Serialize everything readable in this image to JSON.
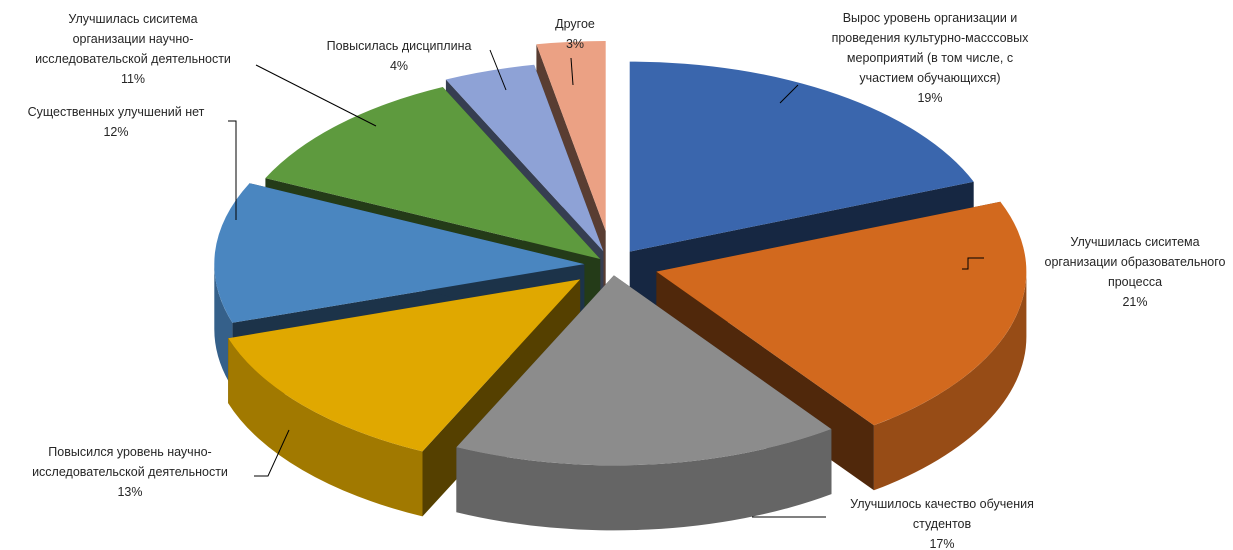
{
  "chart_data": {
    "type": "pie",
    "style": "3d-exploded",
    "title": "",
    "slices": [
      {
        "label_lines": [
          "Вырос уровень организации и",
          "проведения культурно-масссовых",
          "мероприятий (в том числе, с",
          "участием обучающихся)"
        ],
        "value": 19,
        "value_label": "19%",
        "color": "#3A66AD"
      },
      {
        "label_lines": [
          "Улучшилась сиситема",
          "организации образовательного",
          "процесса"
        ],
        "value": 21,
        "value_label": "21%",
        "color": "#D2691E"
      },
      {
        "label_lines": [
          "Улучшилось качество обучения",
          "студентов"
        ],
        "value": 17,
        "value_label": "17%",
        "color": "#8C8C8C"
      },
      {
        "label_lines": [
          "Повысился уровень научно-",
          "исследовательской деятельности"
        ],
        "value": 13,
        "value_label": "13%",
        "color": "#E0A800"
      },
      {
        "label_lines": [
          "Существенных улучшений нет"
        ],
        "value": 12,
        "value_label": "12%",
        "color": "#4A86C0"
      },
      {
        "label_lines": [
          "Улучшилась сиситема",
          "организации научно-",
          "исследовательской деятельности"
        ],
        "value": 11,
        "value_label": "11%",
        "color": "#5E9A3E"
      },
      {
        "label_lines": [
          "Повысилась дисциплина"
        ],
        "value": 4,
        "value_label": "4%",
        "color": "#8EA2D6"
      },
      {
        "label_lines": [
          "Другое"
        ],
        "value": 3,
        "value_label": "3%",
        "color": "#EBA184"
      }
    ]
  }
}
